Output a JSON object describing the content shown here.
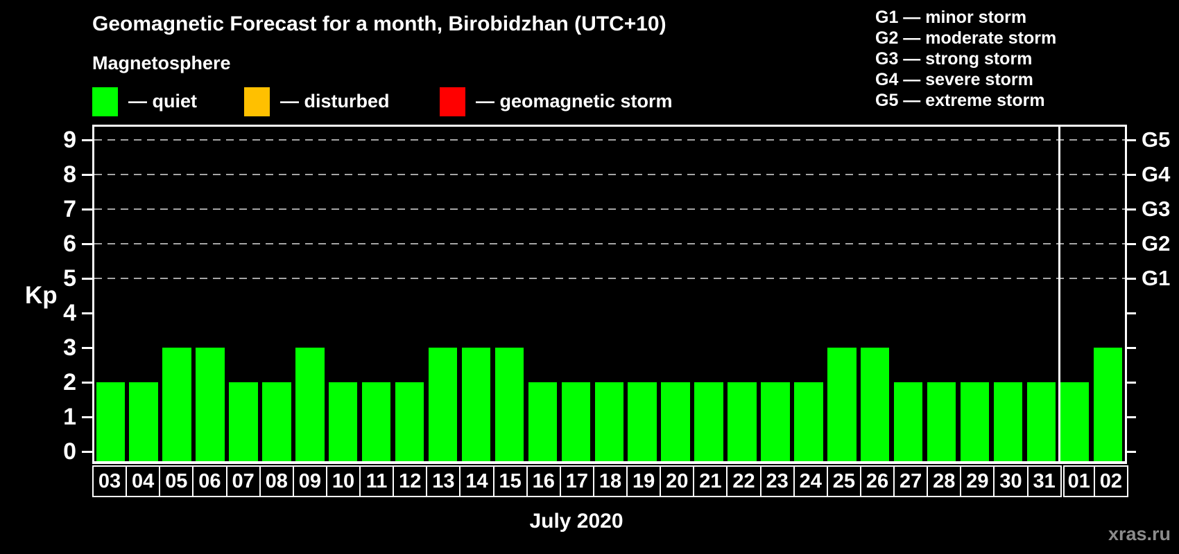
{
  "title": "Geomagnetic Forecast for a month, Birobidzhan (UTC+10)",
  "subtitle": "Magnetosphere",
  "legend": {
    "items": [
      {
        "key": "quiet",
        "label": "— quiet",
        "color": "#00FF00"
      },
      {
        "key": "disturbed",
        "label": "— disturbed",
        "color": "#FFC000"
      },
      {
        "key": "storm",
        "label": "— geomagnetic storm",
        "color": "#FF0000"
      }
    ]
  },
  "g_scale_legend": [
    "G1 — minor storm",
    "G2 — moderate storm",
    "G3 — strong storm",
    "G4 — severe storm",
    "G5 — extreme storm"
  ],
  "axis": {
    "y_label": "Kp",
    "y_ticks": [
      0,
      1,
      2,
      3,
      4,
      5,
      6,
      7,
      8,
      9
    ],
    "right_labels": [
      {
        "kp": 9,
        "label": "G5"
      },
      {
        "kp": 8,
        "label": "G4"
      },
      {
        "kp": 7,
        "label": "G3"
      },
      {
        "kp": 6,
        "label": "G2"
      },
      {
        "kp": 5,
        "label": "G1"
      }
    ],
    "x_title": "July 2020"
  },
  "watermark": "xras.ru",
  "chart_data": {
    "type": "bar",
    "title": "Geomagnetic Forecast for a month, Birobidzhan (UTC+10)",
    "ylabel": "Kp",
    "xlabel": "July 2020",
    "ylim": [
      0,
      9
    ],
    "grid": "dashed horizontal lines at Kp 5-9 only",
    "legend_position": "top-left colors, top-right G-scale",
    "categories": [
      "03",
      "04",
      "05",
      "06",
      "07",
      "08",
      "09",
      "10",
      "11",
      "12",
      "13",
      "14",
      "15",
      "16",
      "17",
      "18",
      "19",
      "20",
      "21",
      "22",
      "23",
      "24",
      "25",
      "26",
      "27",
      "28",
      "29",
      "30",
      "31",
      "01",
      "02"
    ],
    "values": [
      2,
      2,
      3,
      3,
      2,
      2,
      3,
      2,
      2,
      2,
      3,
      3,
      3,
      2,
      2,
      2,
      2,
      2,
      2,
      2,
      2,
      2,
      3,
      3,
      2,
      2,
      2,
      2,
      2,
      2,
      3
    ],
    "gridlines_at": [
      5,
      6,
      7,
      8,
      9
    ],
    "month_separator_after_index": 28,
    "color_rule": {
      "kp_0_3": "#00FF00",
      "kp_4": "#FFC000",
      "kp_5_9": "#FF0000"
    }
  }
}
